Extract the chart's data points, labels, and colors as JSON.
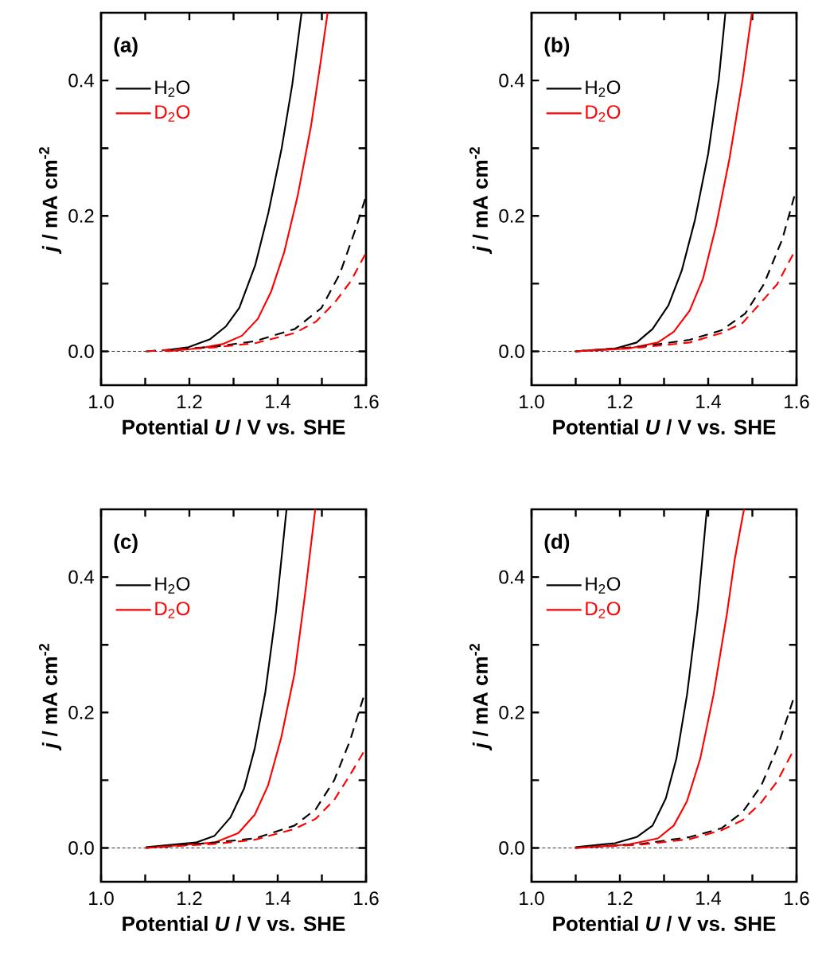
{
  "chart_data": [
    {
      "type": "line",
      "title": "(a)",
      "xlabel": "Potential *U* / V vs. SHE",
      "ylabel": "*j* / mA cm$^{-2}$",
      "xlim": [
        1.0,
        1.6
      ],
      "ylim": [
        -0.05,
        0.5
      ],
      "xticks": [
        {
          "value": 1.0,
          "label": "1.0"
        },
        {
          "value": 1.1,
          "label": null
        },
        {
          "value": 1.2,
          "label": "1.2"
        },
        {
          "value": 1.3,
          "label": null
        },
        {
          "value": 1.4,
          "label": "1.4"
        },
        {
          "value": 1.5,
          "label": null
        },
        {
          "value": 1.6,
          "label": "1.6"
        }
      ],
      "yticks": [
        {
          "value": 0.0,
          "label": "0.0"
        },
        {
          "value": 0.1,
          "label": null
        },
        {
          "value": 0.2,
          "label": "0.2"
        },
        {
          "value": 0.3,
          "label": null
        },
        {
          "value": 0.4,
          "label": "0.4"
        }
      ],
      "legend": "top left",
      "ref_lines": [
        {
          "axis": "y",
          "value": 0,
          "color": "#000000",
          "line_style": "dashed"
        }
      ],
      "series": [
        {
          "name": "H$_{2}$O",
          "color": "#000000",
          "line_style": "solid",
          "x": [
            1.15,
            1.198,
            1.247,
            1.283,
            1.313,
            1.349,
            1.379,
            1.409,
            1.433,
            1.454
          ],
          "values": [
            0.002,
            0.006,
            0.018,
            0.037,
            0.064,
            0.127,
            0.205,
            0.3,
            0.394,
            0.5
          ]
        },
        {
          "name": "D$_{2}$O",
          "color": "#ff0000",
          "line_style": "solid",
          "x": [
            1.15,
            1.228,
            1.277,
            1.319,
            1.355,
            1.385,
            1.415,
            1.445,
            1.475,
            1.496,
            1.513
          ],
          "values": [
            0.0,
            0.005,
            0.011,
            0.023,
            0.048,
            0.088,
            0.147,
            0.229,
            0.331,
            0.422,
            0.5
          ]
        },
        {
          "color": "#000000",
          "line_style": "dashed",
          "x": [
            1.102,
            1.259,
            1.349,
            1.439,
            1.499,
            1.541,
            1.577,
            1.598
          ],
          "values": [
            0.0,
            0.007,
            0.015,
            0.033,
            0.064,
            0.115,
            0.182,
            0.225
          ]
        },
        {
          "color": "#ff0000",
          "line_style": "dashed",
          "x": [
            1.102,
            1.259,
            1.349,
            1.439,
            1.487,
            1.529,
            1.565,
            1.598
          ],
          "values": [
            0.0,
            0.006,
            0.012,
            0.027,
            0.044,
            0.072,
            0.103,
            0.143
          ]
        }
      ]
    },
    {
      "type": "line",
      "title": "(b)",
      "xlabel": "Potential *U* / V vs. SHE",
      "ylabel": "*j* / mA cm$^{-2}$",
      "xlim": [
        1.0,
        1.6
      ],
      "ylim": [
        -0.05,
        0.5
      ],
      "xticks": [
        {
          "value": 1.0,
          "label": "1.0"
        },
        {
          "value": 1.1,
          "label": null
        },
        {
          "value": 1.2,
          "label": "1.2"
        },
        {
          "value": 1.3,
          "label": null
        },
        {
          "value": 1.4,
          "label": "1.4"
        },
        {
          "value": 1.5,
          "label": null
        },
        {
          "value": 1.6,
          "label": "1.6"
        }
      ],
      "yticks": [
        {
          "value": 0.0,
          "label": "0.0"
        },
        {
          "value": 0.1,
          "label": null
        },
        {
          "value": 0.2,
          "label": "0.2"
        },
        {
          "value": 0.3,
          "label": null
        },
        {
          "value": 0.4,
          "label": "0.4"
        }
      ],
      "legend": "top left",
      "ref_lines": [
        {
          "axis": "y",
          "value": 0,
          "color": "#000000",
          "line_style": "dashed"
        }
      ],
      "series": [
        {
          "name": "H$_{2}$O",
          "color": "#000000",
          "line_style": "solid",
          "x": [
            1.099,
            1.189,
            1.238,
            1.274,
            1.31,
            1.34,
            1.37,
            1.4,
            1.424,
            1.439
          ],
          "values": [
            0.0,
            0.004,
            0.013,
            0.033,
            0.068,
            0.119,
            0.194,
            0.292,
            0.402,
            0.5
          ]
        },
        {
          "name": "D$_{2}$O",
          "color": "#ff0000",
          "line_style": "solid",
          "x": [
            1.099,
            1.219,
            1.286,
            1.322,
            1.358,
            1.388,
            1.418,
            1.448,
            1.478,
            1.499
          ],
          "values": [
            0.0,
            0.004,
            0.013,
            0.029,
            0.06,
            0.107,
            0.186,
            0.284,
            0.402,
            0.5
          ]
        },
        {
          "color": "#000000",
          "line_style": "dashed",
          "x": [
            1.099,
            1.25,
            1.358,
            1.43,
            1.484,
            1.526,
            1.568,
            1.595
          ],
          "values": [
            0.0,
            0.007,
            0.017,
            0.031,
            0.056,
            0.099,
            0.166,
            0.229
          ]
        },
        {
          "color": "#ff0000",
          "line_style": "dashed",
          "x": [
            1.099,
            1.25,
            1.358,
            1.43,
            1.478,
            1.514,
            1.556,
            1.592
          ],
          "values": [
            0.0,
            0.006,
            0.013,
            0.027,
            0.042,
            0.068,
            0.099,
            0.143
          ]
        }
      ]
    },
    {
      "type": "line",
      "title": "(c)",
      "xlabel": "Potential *U* / V vs. SHE",
      "ylabel": "*j* / mA cm$^{-2}$",
      "xlim": [
        1.0,
        1.6
      ],
      "ylim": [
        -0.05,
        0.5
      ],
      "xticks": [
        {
          "value": 1.0,
          "label": "1.0"
        },
        {
          "value": 1.1,
          "label": null
        },
        {
          "value": 1.2,
          "label": "1.2"
        },
        {
          "value": 1.3,
          "label": null
        },
        {
          "value": 1.4,
          "label": "1.4"
        },
        {
          "value": 1.5,
          "label": null
        },
        {
          "value": 1.6,
          "label": "1.6"
        }
      ],
      "yticks": [
        {
          "value": 0.0,
          "label": "0.0"
        },
        {
          "value": 0.1,
          "label": null
        },
        {
          "value": 0.2,
          "label": "0.2"
        },
        {
          "value": 0.3,
          "label": null
        },
        {
          "value": 0.4,
          "label": "0.4"
        }
      ],
      "legend": "top left",
      "ref_lines": [
        {
          "axis": "y",
          "value": 0,
          "color": "#000000",
          "line_style": "dashed"
        }
      ],
      "series": [
        {
          "name": "H$_{2}$O",
          "color": "#000000",
          "line_style": "solid",
          "x": [
            1.101,
            1.215,
            1.257,
            1.293,
            1.324,
            1.348,
            1.372,
            1.396,
            1.42
          ],
          "values": [
            0.001,
            0.008,
            0.018,
            0.045,
            0.088,
            0.147,
            0.23,
            0.348,
            0.5
          ]
        },
        {
          "name": "D$_{2}$O",
          "color": "#ff0000",
          "line_style": "solid",
          "x": [
            1.101,
            1.257,
            1.311,
            1.348,
            1.378,
            1.408,
            1.438,
            1.462,
            1.485
          ],
          "values": [
            0.0,
            0.008,
            0.022,
            0.049,
            0.092,
            0.163,
            0.257,
            0.375,
            0.5
          ]
        },
        {
          "color": "#000000",
          "line_style": "dashed",
          "x": [
            1.101,
            1.257,
            1.348,
            1.438,
            1.486,
            1.528,
            1.564,
            1.594
          ],
          "values": [
            0.0,
            0.008,
            0.014,
            0.033,
            0.057,
            0.1,
            0.159,
            0.222
          ]
        },
        {
          "color": "#ff0000",
          "line_style": "dashed",
          "x": [
            1.101,
            1.257,
            1.348,
            1.438,
            1.486,
            1.528,
            1.564,
            1.594
          ],
          "values": [
            0.0,
            0.006,
            0.012,
            0.028,
            0.043,
            0.071,
            0.108,
            0.141
          ]
        }
      ]
    },
    {
      "type": "line",
      "title": "(d)",
      "xlabel": "Potential *U* / V vs. SHE",
      "ylabel": "*j* / mA cm$^{-2}$",
      "xlim": [
        1.0,
        1.6
      ],
      "ylim": [
        -0.05,
        0.5
      ],
      "xticks": [
        {
          "value": 1.0,
          "label": "1.0"
        },
        {
          "value": 1.1,
          "label": null
        },
        {
          "value": 1.2,
          "label": "1.2"
        },
        {
          "value": 1.3,
          "label": null
        },
        {
          "value": 1.4,
          "label": "1.4"
        },
        {
          "value": 1.5,
          "label": null
        },
        {
          "value": 1.6,
          "label": "1.6"
        }
      ],
      "yticks": [
        {
          "value": 0.0,
          "label": "0.0"
        },
        {
          "value": 0.1,
          "label": null
        },
        {
          "value": 0.2,
          "label": "0.2"
        },
        {
          "value": 0.3,
          "label": null
        },
        {
          "value": 0.4,
          "label": "0.4"
        }
      ],
      "legend": "top left",
      "ref_lines": [
        {
          "axis": "y",
          "value": 0,
          "color": "#000000",
          "line_style": "dashed"
        }
      ],
      "series": [
        {
          "name": "H$_{2}$O",
          "color": "#000000",
          "line_style": "solid",
          "x": [
            1.099,
            1.189,
            1.238,
            1.274,
            1.304,
            1.328,
            1.352,
            1.376,
            1.397
          ],
          "values": [
            0.001,
            0.007,
            0.016,
            0.033,
            0.073,
            0.132,
            0.226,
            0.352,
            0.5
          ]
        },
        {
          "name": "D$_{2}$O",
          "color": "#ff0000",
          "line_style": "solid",
          "x": [
            1.099,
            1.219,
            1.286,
            1.322,
            1.352,
            1.382,
            1.412,
            1.442,
            1.46,
            1.481
          ],
          "values": [
            0.0,
            0.005,
            0.014,
            0.033,
            0.069,
            0.132,
            0.226,
            0.344,
            0.426,
            0.5
          ]
        },
        {
          "color": "#000000",
          "line_style": "dashed",
          "x": [
            1.099,
            1.25,
            1.358,
            1.43,
            1.478,
            1.52,
            1.556,
            1.592
          ],
          "values": [
            0.0,
            0.006,
            0.016,
            0.029,
            0.053,
            0.092,
            0.147,
            0.218
          ]
        },
        {
          "color": "#ff0000",
          "line_style": "dashed",
          "x": [
            1.099,
            1.25,
            1.358,
            1.43,
            1.478,
            1.52,
            1.556,
            1.589
          ],
          "values": [
            0.0,
            0.005,
            0.013,
            0.026,
            0.041,
            0.067,
            0.098,
            0.139
          ]
        }
      ]
    }
  ]
}
